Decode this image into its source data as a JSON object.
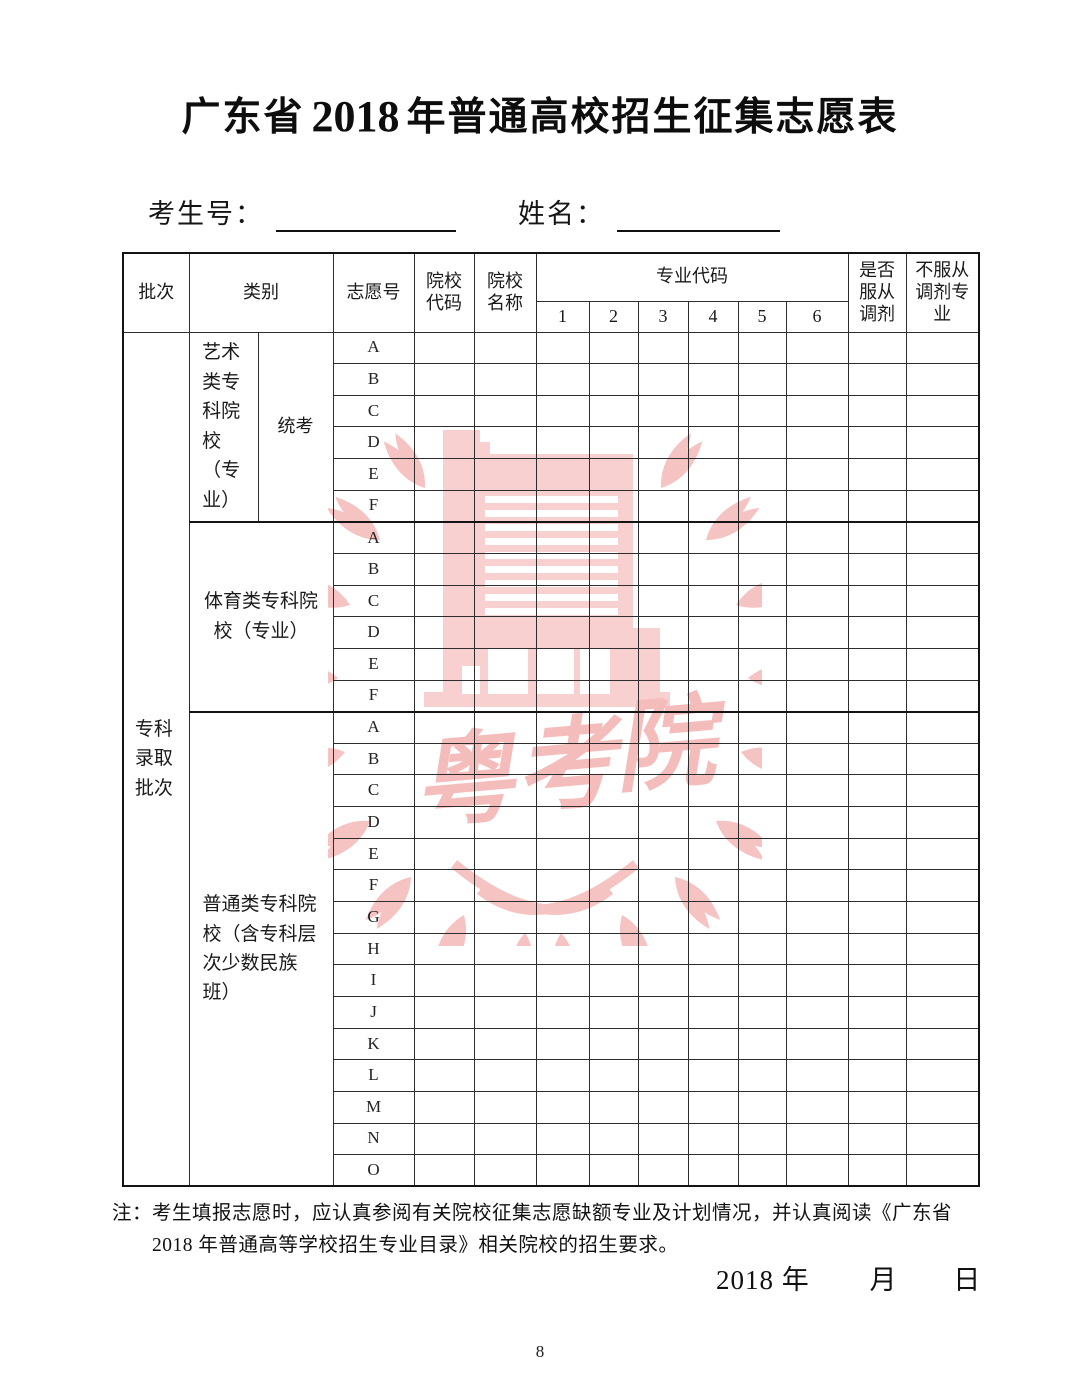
{
  "colors": {
    "watermark_pink": "#f5b6b6",
    "watermark_building": "#f8c6c6",
    "table_border": "#141414"
  },
  "title": {
    "prefix": "广东省",
    "year": "2018",
    "suffix": "年普通高校招生征集志愿表"
  },
  "fields": {
    "candidate_no_label": "考生号：",
    "name_label": "姓名："
  },
  "table": {
    "header": {
      "batch": "批次",
      "category": "类别",
      "choice_no": "志愿号",
      "college_code": "院校代码",
      "college_name": "院校名称",
      "major_codes": "专业代码",
      "major_code_cols": [
        "1",
        "2",
        "3",
        "4",
        "5",
        "6"
      ],
      "obey_adjust": "是否服从调剂",
      "no_adjust_majors": "不服从调剂专业"
    },
    "batch_label": "专科录取批次",
    "groups": [
      {
        "category": "艺术类专科院校（专业）",
        "subcategory": "统考",
        "rows": [
          "A",
          "B",
          "C",
          "D",
          "E",
          "F"
        ]
      },
      {
        "category": "体育类专科院校（专业）",
        "rows": [
          "A",
          "B",
          "C",
          "D",
          "E",
          "F"
        ]
      },
      {
        "category": "普通类专科院校（含专科层次少数民族班）",
        "rows": [
          "A",
          "B",
          "C",
          "D",
          "E",
          "F",
          "G",
          "H",
          "I",
          "J",
          "K",
          "L",
          "M",
          "N",
          "O"
        ]
      }
    ]
  },
  "watermark": {
    "text": "粤考院"
  },
  "note": {
    "label": "注：",
    "line1": "考生填报志愿时，应认真参阅有关院校征集志愿缺额专业及计划情况，并认真阅读《广东省",
    "line2": "2018 年普通高等学校招生专业目录》相关院校的招生要求。"
  },
  "date_line": {
    "year": "2018 年",
    "month": "月",
    "day": "日"
  },
  "page_number": "8"
}
